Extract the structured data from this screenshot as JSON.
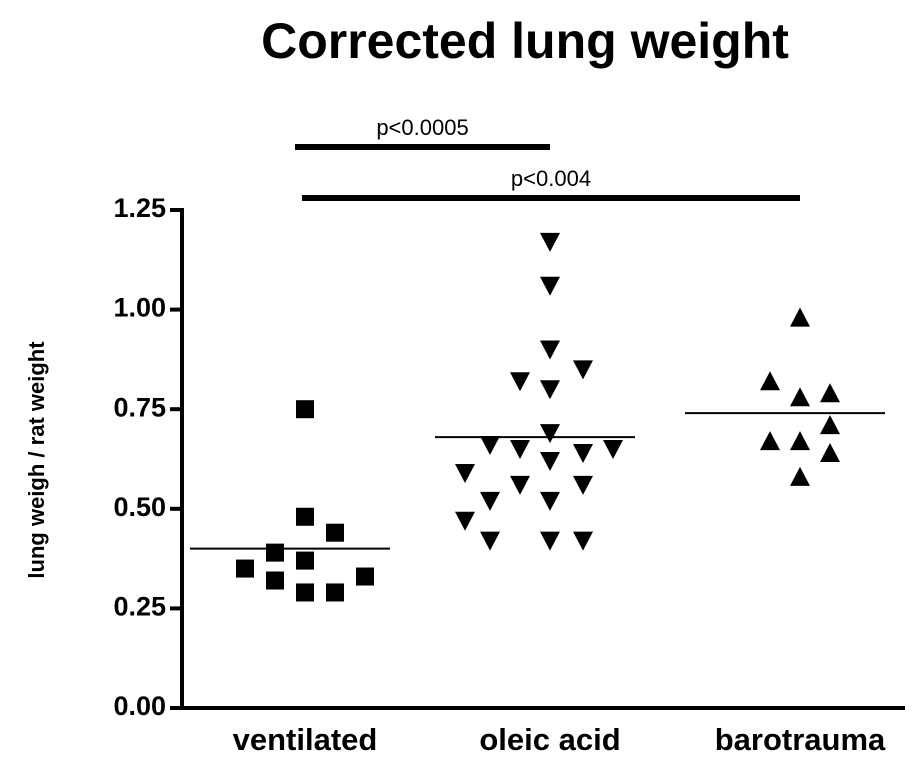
{
  "chart_data": {
    "type": "dot",
    "title": "Corrected lung weight",
    "y_label": "lung weigh / rat weight",
    "categories": [
      "ventilated",
      "oleic acid",
      "barotrauma"
    ],
    "markers": [
      "square",
      "triangle-down",
      "triangle-up"
    ],
    "color": "#000000",
    "values": [
      [
        0.75,
        0.48,
        0.44,
        0.39,
        0.37,
        0.35,
        0.33,
        0.32,
        0.29,
        0.29
      ],
      [
        1.17,
        1.06,
        0.9,
        0.82,
        0.85,
        0.8,
        0.69,
        0.65,
        0.66,
        0.65,
        0.64,
        0.62,
        0.59,
        0.56,
        0.56,
        0.52,
        0.52,
        0.47,
        0.42,
        0.42,
        0.42
      ],
      [
        0.98,
        0.82,
        0.78,
        0.79,
        0.67,
        0.71,
        0.67,
        0.64,
        0.58
      ]
    ],
    "medians": [
      0.4,
      0.68,
      0.74
    ],
    "ylim": [
      0,
      1.25
    ],
    "yticks": [
      {
        "value": 0,
        "label": "0.00"
      },
      0.25,
      {
        "value": 0.5,
        "label": "0.50"
      },
      0.75,
      {
        "value": 1,
        "label": "1.00"
      },
      1.25
    ],
    "annotations": [
      {
        "text": "p<0.0005",
        "from": 0,
        "to": 1
      },
      {
        "text": "p<0.004",
        "from": 0,
        "to": 2
      }
    ]
  }
}
